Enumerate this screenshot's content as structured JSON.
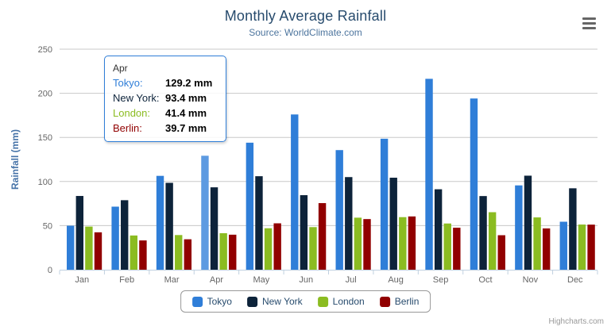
{
  "chart_data": {
    "type": "bar",
    "title": "Monthly Average Rainfall",
    "subtitle": "Source: WorldClimate.com",
    "ylabel": "Rainfall (mm)",
    "xlabel": "",
    "ylim": [
      0,
      250
    ],
    "ytick_interval": 50,
    "grid": true,
    "legend_position": "bottom",
    "categories": [
      "Jan",
      "Feb",
      "Mar",
      "Apr",
      "May",
      "Jun",
      "Jul",
      "Aug",
      "Sep",
      "Oct",
      "Nov",
      "Dec"
    ],
    "series": [
      {
        "name": "Tokyo",
        "color": "#2f7ed8",
        "values": [
          49.9,
          71.5,
          106.4,
          129.2,
          144.0,
          176.0,
          135.6,
          148.5,
          216.4,
          194.1,
          95.6,
          54.4
        ]
      },
      {
        "name": "New York",
        "color": "#0d233a",
        "values": [
          83.6,
          78.8,
          98.5,
          93.4,
          106.0,
          84.5,
          105.0,
          104.3,
          91.2,
          83.5,
          106.6,
          92.3
        ]
      },
      {
        "name": "London",
        "color": "#8bbc21",
        "values": [
          48.9,
          38.8,
          39.3,
          41.4,
          47.0,
          48.3,
          59.0,
          59.6,
          52.4,
          65.2,
          59.3,
          51.2
        ]
      },
      {
        "name": "Berlin",
        "color": "#910000",
        "values": [
          42.4,
          33.2,
          34.5,
          39.7,
          52.6,
          75.5,
          57.4,
          60.4,
          47.6,
          39.1,
          46.8,
          51.1
        ]
      }
    ],
    "colors": {
      "grid_line": "#c8c8c8",
      "axis_line": "#c0d0e0",
      "tick": "#c0d0e0",
      "axis_label": "#666666",
      "y_axis_title": "#4572a7",
      "title": "#274b6d",
      "subtitle": "#4d759e"
    }
  },
  "tooltip": {
    "category": "Apr",
    "hover_series": "Tokyo",
    "unit": "mm",
    "rows": [
      {
        "label": "Tokyo",
        "value": "129.2 mm"
      },
      {
        "label": "New York",
        "value": "93.4 mm"
      },
      {
        "label": "London",
        "value": "41.4 mm"
      },
      {
        "label": "Berlin",
        "value": "39.7 mm"
      }
    ]
  },
  "credits": {
    "label": "Highcharts.com"
  },
  "icons": {
    "menu": "hamburger-icon"
  }
}
